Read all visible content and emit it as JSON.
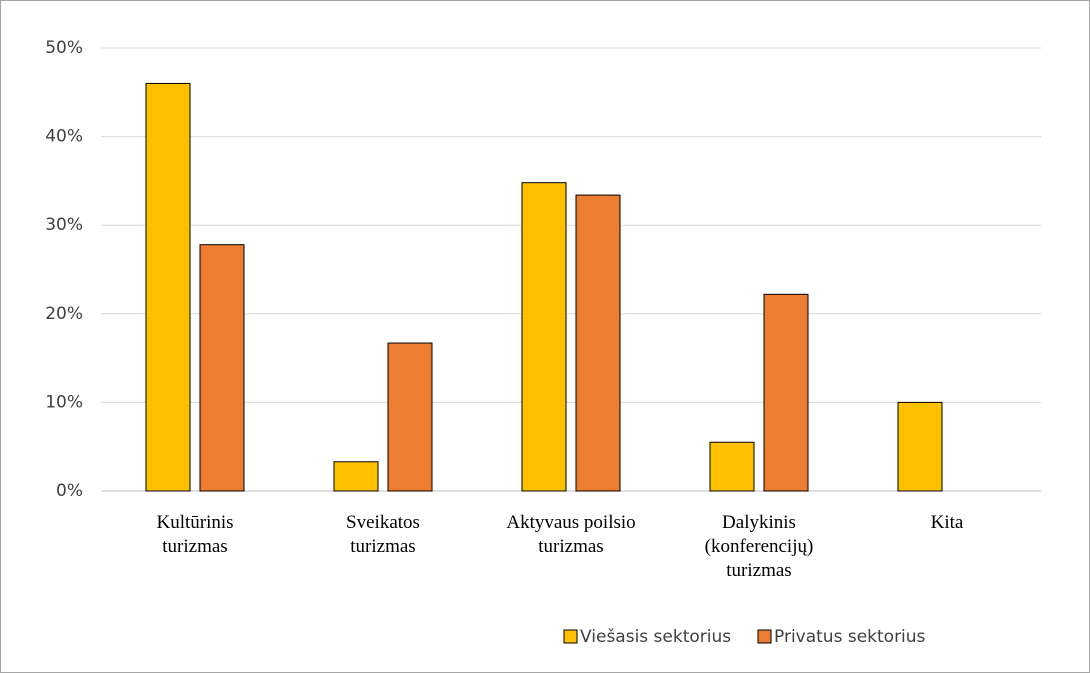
{
  "chart_data": {
    "type": "bar",
    "categories": [
      "Kultūrinis\nturizmas",
      "Sveikatos\nturizmas",
      "Aktyvaus poilsio\nturizmas",
      "Dalykinis\n(konferencijų)\nturizmas",
      "Kita"
    ],
    "series": [
      {
        "name": "Viešasis sektorius",
        "color": "#ffc000",
        "values": [
          46.0,
          3.3,
          34.8,
          5.5,
          10.0
        ]
      },
      {
        "name": "Privatus sektorius",
        "color": "#ed7d31",
        "values": [
          27.8,
          16.7,
          33.4,
          22.2,
          0
        ]
      }
    ],
    "ylim": [
      0,
      50
    ],
    "yticks": [
      {
        "value": 0,
        "label": "0%"
      },
      {
        "value": 10,
        "label": "10%"
      },
      {
        "value": 20,
        "label": "20%"
      },
      {
        "value": 30,
        "label": "30%"
      },
      {
        "value": 40,
        "label": "40%"
      },
      {
        "value": 50,
        "label": "50%"
      }
    ],
    "grid": true,
    "legend": "bottom"
  }
}
